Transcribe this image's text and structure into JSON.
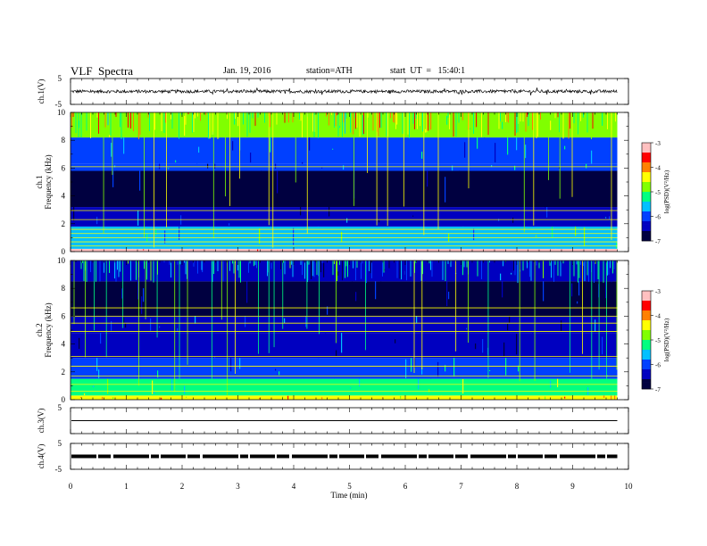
{
  "header": {
    "title": "VLF  Spectra",
    "date": "Jan. 19, 2016",
    "station": "station=ATH",
    "start": "start  UT  =   15:40:1"
  },
  "colors": {
    "background": "#ffffff",
    "axis": "#000000",
    "colormap": [
      "#000040",
      "#0000c0",
      "#0040ff",
      "#00c0ff",
      "#00ff80",
      "#80ff00",
      "#ffff00",
      "#ff8000",
      "#ff0000",
      "#ffc0c0"
    ]
  },
  "chart_data": [
    {
      "type": "line",
      "name": "ch1-waveform",
      "ylabel": "ch.1(V)",
      "ylim": [
        -5,
        5
      ],
      "y_ticks": [
        "5",
        "-5"
      ],
      "xlim": [
        0,
        10
      ],
      "baseline": 0,
      "noise_amplitude": 0.6,
      "data_end_min": 9.8
    },
    {
      "type": "heatmap",
      "name": "ch1-spectrogram",
      "ylabel_top": "ch.1",
      "ylabel": "Frequency  (kHz)",
      "ylim": [
        0,
        10
      ],
      "y_ticks": [
        "0",
        "2",
        "4",
        "6",
        "8",
        "10"
      ],
      "xlim": [
        0,
        10
      ],
      "data_end_min": 9.8,
      "colorbar": {
        "label": "log(PSD)(V²/Hz)",
        "range": [
          -7,
          -3
        ],
        "ticks": [
          "-3",
          "-4",
          "-5",
          "-6",
          "-7"
        ]
      },
      "bands": [
        {
          "f_low": 0.0,
          "f_high": 0.2,
          "level": -3.0
        },
        {
          "f_low": 0.2,
          "f_high": 1.8,
          "level": -5.6
        },
        {
          "f_low": 1.8,
          "f_high": 3.2,
          "level": -6.4
        },
        {
          "f_low": 3.2,
          "f_high": 5.8,
          "level": -6.9
        },
        {
          "f_low": 5.8,
          "f_high": 6.3,
          "level": -6.1
        },
        {
          "f_low": 6.3,
          "f_high": 8.2,
          "level": -5.9
        },
        {
          "f_low": 8.2,
          "f_high": 10.0,
          "level": -4.9
        }
      ],
      "tones_khz": [
        0.4,
        0.7,
        1.0,
        1.3,
        1.6,
        2.3,
        2.95,
        6.1
      ],
      "sferic_level": -5.0
    },
    {
      "type": "heatmap",
      "name": "ch2-spectrogram",
      "ylabel_top": "ch.2",
      "ylabel": "Frequency  (kHz)",
      "ylim": [
        0,
        10
      ],
      "y_ticks": [
        "0",
        "2",
        "4",
        "6",
        "8",
        "10"
      ],
      "xlim": [
        0,
        10
      ],
      "data_end_min": 9.8,
      "colorbar": {
        "label": "log(PSD)(V²/Hz)",
        "range": [
          -7,
          -3
        ],
        "ticks": [
          "-3",
          "-4",
          "-5",
          "-6",
          "-7"
        ]
      },
      "bands": [
        {
          "f_low": 0.0,
          "f_high": 0.3,
          "level": -4.5
        },
        {
          "f_low": 0.3,
          "f_high": 1.5,
          "level": -5.2
        },
        {
          "f_low": 1.5,
          "f_high": 3.0,
          "level": -5.9
        },
        {
          "f_low": 3.0,
          "f_high": 4.8,
          "level": -6.6
        },
        {
          "f_low": 4.8,
          "f_high": 6.0,
          "level": -6.3
        },
        {
          "f_low": 6.0,
          "f_high": 8.5,
          "level": -6.7
        },
        {
          "f_low": 8.5,
          "f_high": 10.0,
          "level": -6.2
        }
      ],
      "tones_khz": [
        0.6,
        1.1,
        1.7,
        2.4,
        3.1,
        4.9,
        5.5,
        6.0,
        6.6
      ],
      "sferic_level": -5.3
    },
    {
      "type": "line",
      "name": "ch3-waveform",
      "ylabel": "ch.3(V)",
      "ylim": [
        -5,
        5
      ],
      "y_ticks": [
        "5",
        ""
      ],
      "xlim": [
        0,
        10
      ],
      "baseline": 0,
      "noise_amplitude": 0,
      "data_end_min": 9.8
    },
    {
      "type": "line",
      "name": "ch4-waveform",
      "ylabel": "ch.4(V)",
      "ylim": [
        -5,
        5
      ],
      "y_ticks": [
        "5",
        "-5"
      ],
      "xlim": [
        0,
        10
      ],
      "baseline": 0,
      "noise_amplitude": 0,
      "dashed": true,
      "data_end_min": 9.8
    }
  ],
  "xaxis": {
    "label": "Time  (min)",
    "ticks": [
      "0",
      "1",
      "2",
      "3",
      "4",
      "5",
      "6",
      "7",
      "8",
      "9",
      "10"
    ],
    "range": [
      0,
      10
    ]
  }
}
